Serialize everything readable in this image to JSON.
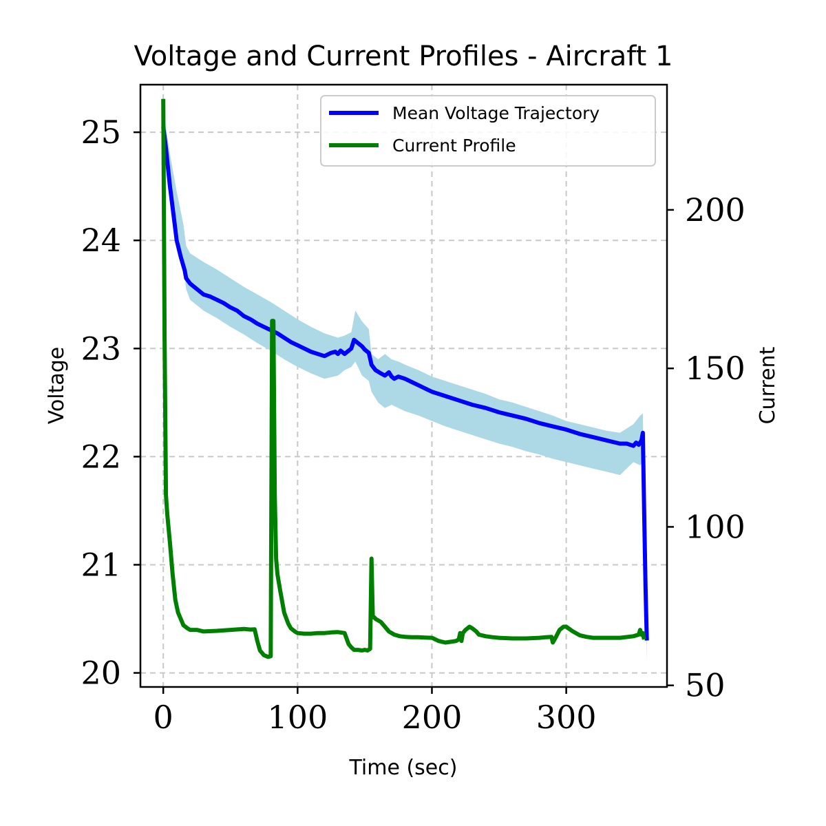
{
  "chart_data": {
    "type": "line",
    "title": "Voltage and Current Profiles - Aircraft 1",
    "xlabel": "Time (sec)",
    "ylabel": "Voltage",
    "y2label": "Current",
    "xlim": [
      -17,
      375
    ],
    "ylim": [
      19.87,
      25.44
    ],
    "y2lim": [
      49.5,
      239.5
    ],
    "xticks": [
      0,
      100,
      200,
      300
    ],
    "yticks": [
      20,
      21,
      22,
      23,
      24,
      25
    ],
    "y2ticks": [
      50,
      100,
      150,
      200
    ],
    "grid": true,
    "legend_position": "top-right",
    "colors": {
      "voltage": "#0000ff",
      "band": "#add8e6",
      "current": "#008000"
    },
    "band": {
      "name": "",
      "x": [
        0,
        5,
        10,
        15,
        17,
        20,
        30,
        40,
        50,
        60,
        70,
        80,
        90,
        100,
        110,
        120,
        130,
        135,
        140,
        143,
        148,
        153,
        155,
        160,
        165,
        170,
        175,
        180,
        190,
        200,
        210,
        220,
        230,
        240,
        250,
        260,
        270,
        280,
        290,
        300,
        310,
        320,
        330,
        340,
        350,
        355,
        357,
        360
      ],
      "upper": [
        25.2,
        24.8,
        24.45,
        24.15,
        23.95,
        23.88,
        23.8,
        23.73,
        23.65,
        23.57,
        23.5,
        23.43,
        23.35,
        23.27,
        23.2,
        23.14,
        23.1,
        23.12,
        23.15,
        23.35,
        23.25,
        23.18,
        22.95,
        22.9,
        22.95,
        22.9,
        22.88,
        22.85,
        22.8,
        22.74,
        22.7,
        22.66,
        22.62,
        22.58,
        22.53,
        22.5,
        22.46,
        22.42,
        22.38,
        22.33,
        22.3,
        22.27,
        22.24,
        22.22,
        22.3,
        22.38,
        22.4,
        20.4
      ],
      "lower": [
        24.95,
        24.55,
        24.15,
        23.75,
        23.55,
        23.45,
        23.35,
        23.28,
        23.2,
        23.13,
        23.05,
        22.98,
        22.9,
        22.83,
        22.77,
        22.72,
        22.75,
        22.8,
        22.83,
        22.88,
        22.75,
        22.7,
        22.6,
        22.5,
        22.45,
        22.48,
        22.45,
        22.42,
        22.38,
        22.33,
        22.28,
        22.24,
        22.2,
        22.16,
        22.12,
        22.09,
        22.05,
        22.02,
        21.98,
        21.95,
        21.92,
        21.89,
        21.86,
        21.83,
        21.95,
        21.92,
        21.95,
        20.1
      ]
    },
    "series": [
      {
        "name": "Mean Voltage Trajectory",
        "axis": "left",
        "x": [
          0,
          2,
          5,
          8,
          10,
          13,
          16,
          17,
          20,
          25,
          30,
          35,
          40,
          45,
          50,
          55,
          60,
          65,
          70,
          75,
          80,
          85,
          90,
          95,
          100,
          105,
          110,
          115,
          120,
          125,
          128,
          130,
          132,
          135,
          138,
          140,
          142,
          145,
          148,
          150,
          153,
          155,
          158,
          162,
          165,
          168,
          170,
          172,
          175,
          180,
          185,
          190,
          195,
          200,
          210,
          220,
          230,
          240,
          250,
          260,
          270,
          280,
          290,
          300,
          310,
          320,
          330,
          340,
          345,
          350,
          352,
          354,
          356,
          357,
          358,
          359,
          360
        ],
        "values": [
          25.05,
          24.85,
          24.5,
          24.2,
          24.0,
          23.85,
          23.72,
          23.65,
          23.6,
          23.55,
          23.5,
          23.48,
          23.45,
          23.42,
          23.38,
          23.35,
          23.3,
          23.27,
          23.23,
          23.2,
          23.17,
          23.14,
          23.1,
          23.06,
          23.03,
          23.0,
          22.97,
          22.95,
          22.93,
          22.96,
          22.97,
          22.95,
          22.98,
          22.95,
          22.98,
          23.0,
          23.08,
          23.05,
          23.02,
          22.99,
          22.96,
          22.85,
          22.8,
          22.77,
          22.75,
          22.78,
          22.74,
          22.72,
          22.74,
          22.72,
          22.69,
          22.66,
          22.63,
          22.6,
          22.56,
          22.52,
          22.48,
          22.45,
          22.41,
          22.38,
          22.35,
          22.31,
          22.28,
          22.25,
          22.21,
          22.18,
          22.15,
          22.12,
          22.12,
          22.1,
          22.13,
          22.11,
          22.15,
          22.22,
          21.5,
          20.8,
          20.3
        ]
      },
      {
        "name": "Current Profile",
        "axis": "right",
        "x": [
          0,
          1,
          2,
          3,
          5,
          7,
          9,
          11,
          13,
          15,
          18,
          20,
          25,
          30,
          40,
          50,
          60,
          65,
          68,
          70,
          72,
          75,
          78,
          80,
          81,
          82,
          83,
          84,
          85,
          87,
          90,
          93,
          95,
          98,
          100,
          105,
          110,
          115,
          120,
          125,
          130,
          135,
          138,
          140,
          142,
          145,
          148,
          150,
          152,
          154,
          155,
          156,
          157,
          158,
          160,
          162,
          165,
          168,
          172,
          176,
          180,
          185,
          190,
          195,
          200,
          205,
          210,
          215,
          218,
          220,
          221,
          222,
          223,
          225,
          228,
          230,
          233,
          235,
          240,
          245,
          250,
          260,
          270,
          280,
          285,
          289,
          290,
          292,
          295,
          298,
          300,
          305,
          310,
          315,
          320,
          330,
          340,
          350,
          354,
          355,
          356,
          357,
          358
        ],
        "values": [
          235,
          160,
          110,
          104,
          95,
          85,
          77,
          73,
          71,
          69,
          68,
          67.5,
          67.5,
          67,
          67.2,
          67.5,
          67.8,
          67.6,
          67.7,
          64,
          61,
          59.5,
          59,
          59.2,
          165,
          165,
          110,
          90,
          85,
          80,
          73,
          69.5,
          68,
          67,
          66.5,
          66.3,
          66.3,
          66.5,
          66.5,
          66.7,
          66.8,
          66.5,
          63,
          62,
          61.2,
          61.2,
          61,
          61.2,
          61,
          61.5,
          90,
          71.5,
          71.5,
          71,
          70.5,
          70,
          68.5,
          67,
          66,
          65.5,
          65.3,
          65.2,
          65.2,
          65.1,
          65,
          64,
          63.5,
          63.8,
          64,
          64.5,
          66.5,
          64,
          66.5,
          67.5,
          68.5,
          68,
          67,
          66,
          65.5,
          65.2,
          65,
          64.8,
          64.8,
          65,
          65.2,
          65.3,
          63.5,
          65,
          67.5,
          68.5,
          68.5,
          67,
          65.8,
          65.3,
          65,
          65,
          65,
          65.5,
          66,
          67.5,
          66,
          66.5,
          64.5
        ]
      }
    ]
  }
}
